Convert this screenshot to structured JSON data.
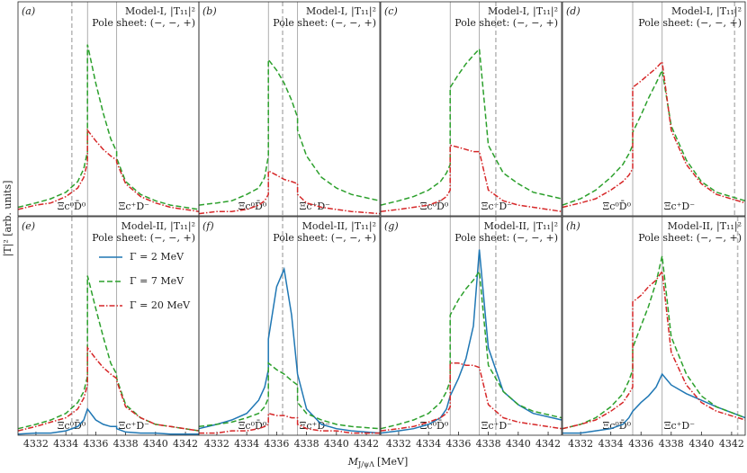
{
  "axis_labels": {
    "y": "|T|² [arb. units]",
    "x_main": "M",
    "x_sub": "J/ψΛ",
    "x_unit": "[MeV]"
  },
  "chart_data": [
    {
      "type": "line",
      "panel_label": "(a)",
      "title": "Model-I, |T₁₁|²",
      "subtitle": "Pole sheet: (−, −, +)",
      "xlim": [
        4330.8,
        4342.9
      ],
      "ylim": [
        0,
        1
      ],
      "x": [
        4330.8,
        4332,
        4333,
        4334,
        4334.8,
        4335.2,
        4335.45,
        4335.45,
        4336,
        4336.5,
        4337,
        4337.4,
        4337.4,
        4338,
        4339,
        4340,
        4341,
        4342.9
      ],
      "thresholds": [
        4335.45,
        4337.4
      ],
      "threshold_labels": [
        "Ξc⁰D̄⁰",
        "Ξc⁺D⁻"
      ],
      "pole": 4334.4,
      "series": [
        {
          "color": "#2ca02c",
          "style": "dashed",
          "values": [
            0.04,
            0.06,
            0.08,
            0.11,
            0.16,
            0.22,
            0.3,
            0.8,
            0.62,
            0.48,
            0.36,
            0.3,
            0.27,
            0.16,
            0.1,
            0.07,
            0.05,
            0.03
          ]
        },
        {
          "color": "#d62728",
          "style": "dashdot",
          "values": [
            0.03,
            0.05,
            0.06,
            0.09,
            0.13,
            0.18,
            0.25,
            0.4,
            0.35,
            0.31,
            0.28,
            0.26,
            0.25,
            0.15,
            0.09,
            0.06,
            0.04,
            0.02
          ]
        }
      ]
    },
    {
      "type": "line",
      "panel_label": "(b)",
      "title": "Model-I, |T₁₁|²",
      "subtitle": "Pole sheet: (−, −, +)",
      "xlim": [
        4330.8,
        4342.9
      ],
      "ylim": [
        0,
        1
      ],
      "x": [
        4330.8,
        4332,
        4333,
        4334,
        4334.8,
        4335.2,
        4335.45,
        4335.45,
        4336,
        4336.5,
        4337,
        4337.4,
        4337.4,
        4338,
        4339,
        4340,
        4341,
        4342.9
      ],
      "thresholds": [
        4335.45,
        4337.4
      ],
      "threshold_labels": [
        "Ξc⁰D̄⁰",
        "Ξc⁺D⁻"
      ],
      "pole": 4336.4,
      "series": [
        {
          "color": "#2ca02c",
          "style": "dashed",
          "values": [
            0.05,
            0.06,
            0.07,
            0.1,
            0.13,
            0.18,
            0.28,
            0.73,
            0.68,
            0.62,
            0.54,
            0.46,
            0.4,
            0.28,
            0.18,
            0.13,
            0.1,
            0.07
          ]
        },
        {
          "color": "#d62728",
          "style": "dashdot",
          "values": [
            0.01,
            0.02,
            0.02,
            0.03,
            0.05,
            0.07,
            0.1,
            0.21,
            0.19,
            0.17,
            0.16,
            0.15,
            0.1,
            0.06,
            0.04,
            0.03,
            0.02,
            0.01
          ]
        }
      ]
    },
    {
      "type": "line",
      "panel_label": "(c)",
      "title": "Model-I, |T₁₁|²",
      "subtitle": "Pole sheet: (−, −, +)",
      "xlim": [
        4330.8,
        4342.9
      ],
      "ylim": [
        0,
        1
      ],
      "x": [
        4330.8,
        4332,
        4333,
        4334,
        4334.8,
        4335.2,
        4335.45,
        4335.45,
        4336,
        4336.5,
        4337,
        4337.4,
        4337.4,
        4338,
        4339,
        4340,
        4341,
        4342.9
      ],
      "thresholds": [
        4335.45,
        4337.4
      ],
      "threshold_labels": [
        "Ξc⁰D̄⁰",
        "Ξc⁺D⁻"
      ],
      "pole": 4338.5,
      "series": [
        {
          "color": "#2ca02c",
          "style": "dashed",
          "values": [
            0.05,
            0.07,
            0.09,
            0.12,
            0.16,
            0.2,
            0.24,
            0.6,
            0.66,
            0.71,
            0.75,
            0.78,
            0.78,
            0.33,
            0.2,
            0.15,
            0.11,
            0.08
          ]
        },
        {
          "color": "#d62728",
          "style": "dashdot",
          "values": [
            0.02,
            0.03,
            0.04,
            0.05,
            0.07,
            0.09,
            0.12,
            0.33,
            0.32,
            0.31,
            0.3,
            0.3,
            0.3,
            0.12,
            0.07,
            0.05,
            0.04,
            0.02
          ]
        }
      ]
    },
    {
      "type": "line",
      "panel_label": "(d)",
      "title": "Model-I, |T₁₁|²",
      "subtitle": "Pole sheet: (−, −, +)",
      "xlim": [
        4330.8,
        4342.9
      ],
      "ylim": [
        0,
        1
      ],
      "x": [
        4330.8,
        4332,
        4333,
        4334,
        4334.8,
        4335.2,
        4335.45,
        4335.45,
        4336,
        4336.5,
        4337,
        4337.4,
        4337.4,
        4338,
        4339,
        4340,
        4341,
        4342.9
      ],
      "thresholds": [
        4335.45,
        4337.4
      ],
      "threshold_labels": [
        "Ξc⁰D̄⁰",
        "Ξc⁺D⁻"
      ],
      "pole": 4342.2,
      "series": [
        {
          "color": "#2ca02c",
          "style": "dashed",
          "values": [
            0.05,
            0.08,
            0.12,
            0.18,
            0.24,
            0.29,
            0.33,
            0.39,
            0.47,
            0.55,
            0.62,
            0.68,
            0.68,
            0.42,
            0.26,
            0.16,
            0.11,
            0.07
          ]
        },
        {
          "color": "#d62728",
          "style": "dashdot",
          "values": [
            0.04,
            0.06,
            0.08,
            0.12,
            0.16,
            0.19,
            0.22,
            0.6,
            0.63,
            0.66,
            0.69,
            0.72,
            0.72,
            0.4,
            0.24,
            0.15,
            0.1,
            0.06
          ]
        }
      ]
    },
    {
      "type": "line",
      "panel_label": "(e)",
      "title": "Model-II, |T₁₁|²",
      "subtitle": "Pole sheet: (−, −, +)",
      "xlim": [
        4330.8,
        4342.9
      ],
      "ylim": [
        0,
        1
      ],
      "xticks": [
        4332,
        4334,
        4336,
        4338,
        4340,
        4342
      ],
      "legend": "upper right",
      "x": [
        4330.8,
        4332,
        4333,
        4334,
        4334.8,
        4335.2,
        4335.45,
        4335.45,
        4336,
        4336.5,
        4337,
        4337.4,
        4337.4,
        4338,
        4339,
        4340,
        4341,
        4342.9
      ],
      "thresholds": [
        4335.45,
        4337.4
      ],
      "threshold_labels": [
        "Ξc⁰D̄⁰",
        "Ξc⁺D⁻"
      ],
      "pole": 4334.4,
      "series": [
        {
          "name": "Γ = 2 MeV",
          "color": "#1f77b4",
          "style": "solid",
          "values": [
            0.005,
            0.01,
            0.01,
            0.02,
            0.04,
            0.07,
            0.12,
            0.12,
            0.07,
            0.05,
            0.04,
            0.04,
            0.03,
            0.015,
            0.01,
            0.01,
            0.005,
            0.005
          ]
        },
        {
          "name": "Γ = 7 MeV",
          "color": "#2ca02c",
          "style": "dashed",
          "values": [
            0.03,
            0.05,
            0.07,
            0.1,
            0.15,
            0.2,
            0.27,
            0.73,
            0.58,
            0.45,
            0.33,
            0.28,
            0.26,
            0.14,
            0.08,
            0.05,
            0.04,
            0.02
          ]
        },
        {
          "name": "Γ = 20 MeV",
          "color": "#d62728",
          "style": "dashdot",
          "values": [
            0.02,
            0.04,
            0.06,
            0.08,
            0.12,
            0.17,
            0.23,
            0.4,
            0.35,
            0.31,
            0.28,
            0.26,
            0.25,
            0.13,
            0.08,
            0.05,
            0.04,
            0.02
          ]
        }
      ]
    },
    {
      "type": "line",
      "panel_label": "(f)",
      "title": "Model-II, |T₁₁|²",
      "subtitle": "Pole sheet: (−, −, +)",
      "xlim": [
        4330.8,
        4342.9
      ],
      "ylim": [
        0,
        1
      ],
      "xticks": [
        4332,
        4334,
        4336,
        4338,
        4340,
        4342
      ],
      "x": [
        4330.8,
        4332,
        4333,
        4334,
        4334.8,
        4335.2,
        4335.45,
        4335.45,
        4336,
        4336.5,
        4337,
        4337.4,
        4337.4,
        4338,
        4339,
        4340,
        4341,
        4342.9
      ],
      "thresholds": [
        4335.45,
        4337.4
      ],
      "threshold_labels": [
        "Ξc⁰D̄⁰",
        "Ξc⁺D⁻"
      ],
      "pole": 4336.4,
      "series": [
        {
          "color": "#1f77b4",
          "style": "solid",
          "values": [
            0.03,
            0.05,
            0.07,
            0.1,
            0.16,
            0.22,
            0.3,
            0.44,
            0.68,
            0.76,
            0.55,
            0.28,
            0.28,
            0.12,
            0.05,
            0.03,
            0.02,
            0.01
          ]
        },
        {
          "color": "#2ca02c",
          "style": "dashed",
          "values": [
            0.04,
            0.05,
            0.06,
            0.08,
            0.1,
            0.13,
            0.17,
            0.33,
            0.3,
            0.28,
            0.25,
            0.23,
            0.15,
            0.1,
            0.07,
            0.05,
            0.04,
            0.03
          ]
        },
        {
          "color": "#d62728",
          "style": "dashdot",
          "values": [
            0.01,
            0.01,
            0.02,
            0.02,
            0.03,
            0.04,
            0.05,
            0.1,
            0.09,
            0.09,
            0.08,
            0.08,
            0.05,
            0.03,
            0.02,
            0.02,
            0.01,
            0.01
          ]
        }
      ]
    },
    {
      "type": "line",
      "panel_label": "(g)",
      "title": "Model-II, |T₁₁|²",
      "subtitle": "Pole sheet: (−, −, +)",
      "xlim": [
        4330.8,
        4342.9
      ],
      "ylim": [
        0,
        1
      ],
      "xticks": [
        4332,
        4334,
        4336,
        4338,
        4340,
        4342
      ],
      "x": [
        4330.8,
        4332,
        4333,
        4334,
        4334.8,
        4335.2,
        4335.45,
        4335.45,
        4336,
        4336.5,
        4337,
        4337.4,
        4337.4,
        4338,
        4339,
        4340,
        4341,
        4342.9
      ],
      "thresholds": [
        4335.45,
        4337.4
      ],
      "threshold_labels": [
        "Ξc⁰D̄⁰",
        "Ξc⁺D⁻"
      ],
      "pole": 4338.5,
      "series": [
        {
          "color": "#1f77b4",
          "style": "solid",
          "values": [
            0.01,
            0.02,
            0.03,
            0.05,
            0.08,
            0.12,
            0.18,
            0.18,
            0.26,
            0.35,
            0.5,
            0.85,
            0.85,
            0.4,
            0.2,
            0.14,
            0.1,
            0.07
          ]
        },
        {
          "color": "#2ca02c",
          "style": "dashed",
          "values": [
            0.03,
            0.05,
            0.07,
            0.1,
            0.15,
            0.2,
            0.25,
            0.55,
            0.62,
            0.67,
            0.71,
            0.75,
            0.75,
            0.32,
            0.2,
            0.14,
            0.11,
            0.08
          ]
        },
        {
          "color": "#d62728",
          "style": "dashdot",
          "values": [
            0.02,
            0.03,
            0.04,
            0.06,
            0.08,
            0.1,
            0.13,
            0.33,
            0.33,
            0.32,
            0.32,
            0.31,
            0.31,
            0.14,
            0.08,
            0.06,
            0.05,
            0.03
          ]
        }
      ]
    },
    {
      "type": "line",
      "panel_label": "(h)",
      "title": "Model-II, |T₁₁|²",
      "subtitle": "Pole sheet: (−, −, +)",
      "xlim": [
        4330.8,
        4342.9
      ],
      "ylim": [
        0,
        1
      ],
      "xticks": [
        4332,
        4334,
        4336,
        4338,
        4340,
        4342
      ],
      "x": [
        4330.8,
        4332,
        4333,
        4334,
        4334.8,
        4335.2,
        4335.45,
        4335.45,
        4336,
        4336.5,
        4337,
        4337.4,
        4337.4,
        4338,
        4339,
        4340,
        4341,
        4342.9
      ],
      "thresholds": [
        4335.45,
        4337.4
      ],
      "threshold_labels": [
        "Ξc⁰D̄⁰",
        "Ξc⁺D⁻"
      ],
      "pole": 4342.4,
      "series": [
        {
          "color": "#1f77b4",
          "style": "solid",
          "values": [
            0.01,
            0.01,
            0.02,
            0.03,
            0.05,
            0.08,
            0.11,
            0.11,
            0.15,
            0.18,
            0.22,
            0.28,
            0.28,
            0.23,
            0.19,
            0.16,
            0.13,
            0.08
          ]
        },
        {
          "color": "#2ca02c",
          "style": "dashed",
          "values": [
            0.03,
            0.05,
            0.08,
            0.13,
            0.19,
            0.25,
            0.3,
            0.4,
            0.5,
            0.59,
            0.7,
            0.82,
            0.82,
            0.45,
            0.28,
            0.18,
            0.13,
            0.08
          ]
        },
        {
          "color": "#d62728",
          "style": "dashdot",
          "values": [
            0.03,
            0.05,
            0.07,
            0.11,
            0.15,
            0.19,
            0.22,
            0.61,
            0.64,
            0.68,
            0.71,
            0.75,
            0.75,
            0.38,
            0.23,
            0.15,
            0.11,
            0.07
          ]
        }
      ]
    }
  ]
}
